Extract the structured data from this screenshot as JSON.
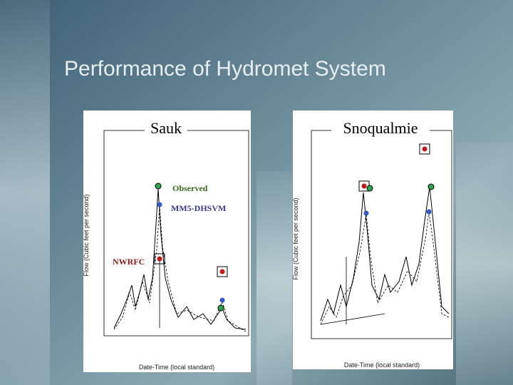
{
  "title": "Performance of Hydromet System",
  "panels": [
    {
      "label": "Sauk",
      "y_axis_title": "Flow (Cubic feet per second)",
      "x_axis_title": "Date-Time (local standard)",
      "annotations": [
        "Observed",
        "MM5-DHSVM",
        "NWRFC"
      ]
    },
    {
      "label": "Snoqualmie",
      "y_axis_title": "Flow (Cubic feet per second)",
      "x_axis_title": "Date-Time (local standard)"
    }
  ]
}
